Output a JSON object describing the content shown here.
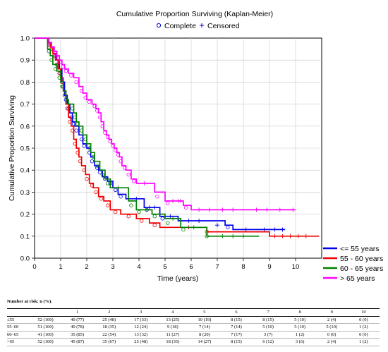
{
  "chart_data": {
    "type": "line",
    "title": "Cumulative Proportion Surviving (Kaplan-Meier)",
    "marker_legend": {
      "complete": "Complete",
      "censored": "Censored"
    },
    "xlabel": "Time (years)",
    "ylabel": "Cumulative Proportion Surviving",
    "xlim": [
      0,
      11
    ],
    "ylim": [
      0,
      1.0
    ],
    "xticks": [
      0,
      1,
      2,
      3,
      4,
      5,
      6,
      7,
      8,
      9,
      10
    ],
    "yticks": [
      0.0,
      0.1,
      0.2,
      0.3,
      0.4,
      0.5,
      0.6,
      0.7,
      0.8,
      0.9,
      1.0
    ],
    "ytick_labels": [
      "0.0",
      "0.1",
      "0.2",
      "0.3",
      "0.4",
      "0.5",
      "0.6",
      "0.7",
      "0.8",
      "0.9",
      "1.0"
    ],
    "grid": true,
    "legend_position": "bottom-right",
    "series": [
      {
        "name": "<= 55 years",
        "color": "#0000ee",
        "steps": [
          [
            0,
            1.0
          ],
          [
            0.55,
            0.98
          ],
          [
            0.65,
            0.96
          ],
          [
            0.75,
            0.94
          ],
          [
            0.85,
            0.9
          ],
          [
            0.95,
            0.86
          ],
          [
            1.05,
            0.8
          ],
          [
            1.15,
            0.74
          ],
          [
            1.25,
            0.7
          ],
          [
            1.35,
            0.66
          ],
          [
            1.45,
            0.62
          ],
          [
            1.55,
            0.6
          ],
          [
            1.7,
            0.56
          ],
          [
            1.85,
            0.52
          ],
          [
            2.0,
            0.5
          ],
          [
            2.15,
            0.46
          ],
          [
            2.3,
            0.42
          ],
          [
            2.45,
            0.4
          ],
          [
            2.6,
            0.37
          ],
          [
            2.8,
            0.35
          ],
          [
            3.0,
            0.32
          ],
          [
            3.2,
            0.29
          ],
          [
            3.5,
            0.27
          ],
          [
            4.2,
            0.23
          ],
          [
            4.8,
            0.19
          ],
          [
            5.5,
            0.17
          ],
          [
            7.3,
            0.15
          ],
          [
            7.6,
            0.13
          ]
        ],
        "end_x": 9.6,
        "complete": [
          [
            0.6,
            0.97
          ],
          [
            0.7,
            0.95
          ],
          [
            0.8,
            0.92
          ],
          [
            0.9,
            0.88
          ],
          [
            1.0,
            0.84
          ],
          [
            1.1,
            0.78
          ],
          [
            1.2,
            0.72
          ],
          [
            1.3,
            0.68
          ],
          [
            1.4,
            0.64
          ],
          [
            1.5,
            0.61
          ],
          [
            1.6,
            0.58
          ],
          [
            1.8,
            0.54
          ],
          [
            1.9,
            0.51
          ],
          [
            2.1,
            0.48
          ],
          [
            2.2,
            0.44
          ],
          [
            2.4,
            0.41
          ],
          [
            2.5,
            0.39
          ],
          [
            2.7,
            0.36
          ],
          [
            2.9,
            0.34
          ],
          [
            3.1,
            0.31
          ],
          [
            3.3,
            0.28
          ],
          [
            4.3,
            0.22
          ],
          [
            4.9,
            0.18
          ],
          [
            7.4,
            0.14
          ]
        ],
        "censored": [
          [
            3.9,
            0.27
          ],
          [
            4.4,
            0.23
          ],
          [
            4.6,
            0.23
          ],
          [
            5.2,
            0.19
          ],
          [
            5.9,
            0.17
          ],
          [
            6.3,
            0.17
          ],
          [
            7.0,
            0.15
          ],
          [
            8.1,
            0.13
          ],
          [
            8.8,
            0.13
          ],
          [
            9.2,
            0.13
          ],
          [
            9.5,
            0.13
          ]
        ]
      },
      {
        "name": "55 - 60 years",
        "color": "#ee0000",
        "steps": [
          [
            0,
            1.0
          ],
          [
            0.5,
            0.98
          ],
          [
            0.6,
            0.96
          ],
          [
            0.7,
            0.93
          ],
          [
            0.8,
            0.9
          ],
          [
            0.9,
            0.86
          ],
          [
            1.0,
            0.82
          ],
          [
            1.1,
            0.76
          ],
          [
            1.2,
            0.7
          ],
          [
            1.3,
            0.64
          ],
          [
            1.4,
            0.6
          ],
          [
            1.5,
            0.54
          ],
          [
            1.6,
            0.5
          ],
          [
            1.7,
            0.46
          ],
          [
            1.8,
            0.42
          ],
          [
            1.95,
            0.38
          ],
          [
            2.1,
            0.34
          ],
          [
            2.25,
            0.32
          ],
          [
            2.45,
            0.28
          ],
          [
            2.65,
            0.26
          ],
          [
            2.9,
            0.22
          ],
          [
            3.3,
            0.2
          ],
          [
            3.9,
            0.18
          ],
          [
            4.4,
            0.16
          ],
          [
            4.8,
            0.14
          ],
          [
            6.6,
            0.12
          ],
          [
            9.0,
            0.1
          ]
        ],
        "end_x": 10.9,
        "complete": [
          [
            0.55,
            0.97
          ],
          [
            0.65,
            0.95
          ],
          [
            0.75,
            0.92
          ],
          [
            0.85,
            0.88
          ],
          [
            0.95,
            0.84
          ],
          [
            1.05,
            0.8
          ],
          [
            1.15,
            0.74
          ],
          [
            1.25,
            0.68
          ],
          [
            1.35,
            0.62
          ],
          [
            1.45,
            0.58
          ],
          [
            1.55,
            0.52
          ],
          [
            1.65,
            0.48
          ],
          [
            1.75,
            0.44
          ],
          [
            1.9,
            0.4
          ],
          [
            2.0,
            0.36
          ],
          [
            2.2,
            0.33
          ],
          [
            2.35,
            0.3
          ],
          [
            2.55,
            0.27
          ],
          [
            2.8,
            0.24
          ],
          [
            3.1,
            0.21
          ],
          [
            3.6,
            0.19
          ],
          [
            4.1,
            0.17
          ],
          [
            4.6,
            0.15
          ],
          [
            6.6,
            0.12
          ]
        ],
        "censored": [
          [
            5.9,
            0.14
          ],
          [
            9.2,
            0.1
          ],
          [
            9.5,
            0.1
          ],
          [
            9.8,
            0.1
          ],
          [
            10.1,
            0.1
          ],
          [
            10.4,
            0.1
          ]
        ]
      },
      {
        "name": "60 - 65 years",
        "color": "#008000",
        "steps": [
          [
            0,
            1.0
          ],
          [
            0.5,
            0.95
          ],
          [
            0.6,
            0.92
          ],
          [
            0.7,
            0.88
          ],
          [
            0.85,
            0.85
          ],
          [
            1.0,
            0.8
          ],
          [
            1.1,
            0.76
          ],
          [
            1.2,
            0.72
          ],
          [
            1.3,
            0.7
          ],
          [
            1.5,
            0.66
          ],
          [
            1.6,
            0.62
          ],
          [
            1.7,
            0.6
          ],
          [
            1.85,
            0.56
          ],
          [
            2.0,
            0.52
          ],
          [
            2.15,
            0.48
          ],
          [
            2.3,
            0.44
          ],
          [
            2.5,
            0.4
          ],
          [
            2.7,
            0.36
          ],
          [
            2.9,
            0.32
          ],
          [
            3.6,
            0.26
          ],
          [
            3.9,
            0.22
          ],
          [
            4.5,
            0.2
          ],
          [
            5.0,
            0.18
          ],
          [
            5.6,
            0.14
          ],
          [
            6.6,
            0.1
          ]
        ],
        "end_x": 8.6,
        "complete": [
          [
            0.55,
            0.94
          ],
          [
            0.65,
            0.9
          ],
          [
            0.8,
            0.86
          ],
          [
            0.95,
            0.82
          ],
          [
            1.05,
            0.78
          ],
          [
            1.15,
            0.74
          ],
          [
            1.25,
            0.71
          ],
          [
            1.45,
            0.68
          ],
          [
            1.55,
            0.64
          ],
          [
            1.65,
            0.61
          ],
          [
            1.8,
            0.58
          ],
          [
            1.95,
            0.54
          ],
          [
            2.1,
            0.5
          ],
          [
            2.25,
            0.46
          ],
          [
            2.4,
            0.42
          ],
          [
            2.6,
            0.38
          ],
          [
            2.8,
            0.34
          ],
          [
            3.7,
            0.24
          ],
          [
            4.0,
            0.21
          ],
          [
            4.6,
            0.19
          ],
          [
            5.1,
            0.16
          ],
          [
            5.7,
            0.13
          ],
          [
            6.6,
            0.1
          ]
        ],
        "censored": [
          [
            3.2,
            0.32
          ],
          [
            4.3,
            0.22
          ],
          [
            5.3,
            0.18
          ],
          [
            6.1,
            0.14
          ],
          [
            7.2,
            0.1
          ],
          [
            7.6,
            0.1
          ],
          [
            8.0,
            0.1
          ]
        ]
      },
      {
        "name": "> 65 years",
        "color": "#ff00ff",
        "steps": [
          [
            0,
            1.0
          ],
          [
            0.55,
            0.98
          ],
          [
            0.65,
            0.96
          ],
          [
            0.75,
            0.94
          ],
          [
            0.85,
            0.92
          ],
          [
            0.95,
            0.9
          ],
          [
            1.05,
            0.88
          ],
          [
            1.15,
            0.86
          ],
          [
            1.3,
            0.84
          ],
          [
            1.5,
            0.82
          ],
          [
            1.7,
            0.78
          ],
          [
            1.85,
            0.75
          ],
          [
            2.0,
            0.72
          ],
          [
            2.2,
            0.7
          ],
          [
            2.35,
            0.68
          ],
          [
            2.45,
            0.66
          ],
          [
            2.55,
            0.62
          ],
          [
            2.65,
            0.58
          ],
          [
            2.75,
            0.56
          ],
          [
            2.85,
            0.54
          ],
          [
            2.95,
            0.52
          ],
          [
            3.05,
            0.5
          ],
          [
            3.15,
            0.48
          ],
          [
            3.25,
            0.46
          ],
          [
            3.35,
            0.42
          ],
          [
            3.5,
            0.4
          ],
          [
            3.7,
            0.36
          ],
          [
            3.9,
            0.34
          ],
          [
            4.6,
            0.3
          ],
          [
            5.0,
            0.26
          ],
          [
            5.7,
            0.24
          ],
          [
            6.0,
            0.22
          ]
        ],
        "end_x": 10.0,
        "complete": [
          [
            0.6,
            0.97
          ],
          [
            0.7,
            0.95
          ],
          [
            0.8,
            0.93
          ],
          [
            0.9,
            0.91
          ],
          [
            1.0,
            0.89
          ],
          [
            1.1,
            0.87
          ],
          [
            1.2,
            0.85
          ],
          [
            1.4,
            0.83
          ],
          [
            1.6,
            0.8
          ],
          [
            1.8,
            0.76
          ],
          [
            1.95,
            0.73
          ],
          [
            2.1,
            0.71
          ],
          [
            2.3,
            0.69
          ],
          [
            2.4,
            0.67
          ],
          [
            2.5,
            0.64
          ],
          [
            2.6,
            0.6
          ],
          [
            2.7,
            0.57
          ],
          [
            2.8,
            0.55
          ],
          [
            2.9,
            0.53
          ],
          [
            3.0,
            0.51
          ],
          [
            3.1,
            0.49
          ],
          [
            3.2,
            0.47
          ],
          [
            3.3,
            0.44
          ],
          [
            3.45,
            0.41
          ],
          [
            3.6,
            0.38
          ],
          [
            3.8,
            0.35
          ],
          [
            4.7,
            0.28
          ],
          [
            5.1,
            0.25
          ],
          [
            5.8,
            0.23
          ]
        ],
        "censored": [
          [
            4.2,
            0.34
          ],
          [
            5.3,
            0.26
          ],
          [
            5.5,
            0.26
          ],
          [
            5.6,
            0.26
          ],
          [
            6.3,
            0.22
          ],
          [
            6.7,
            0.22
          ],
          [
            7.2,
            0.22
          ],
          [
            7.6,
            0.22
          ],
          [
            8.5,
            0.22
          ],
          [
            8.9,
            0.22
          ],
          [
            9.4,
            0.22
          ],
          [
            9.9,
            0.22
          ]
        ]
      }
    ]
  },
  "risk_table": {
    "caption": "Number at risk: n (%).",
    "columns": [
      "",
      "",
      "1",
      "2",
      "3",
      "4",
      "5",
      "6",
      "7",
      "8",
      "9",
      "10"
    ],
    "rows": [
      [
        "≤55",
        "52 (100)",
        "40 (77)",
        "25 (48)",
        "17 (33)",
        "13 (25)",
        "10 (19)",
        "8 (15)",
        "8 (15)",
        "5 (10)",
        "2 (4)",
        "0 (0)"
      ],
      [
        "55–60",
        "51 (100)",
        "40 (78)",
        "18 (35)",
        "12 (24)",
        "9 (18)",
        "7 (14)",
        "7 (14)",
        "5 (10)",
        "5 (10)",
        "5 (10)",
        "1 (2)"
      ],
      [
        "60–65",
        "41 (100)",
        "35 (85)",
        "22 (54)",
        "13 (32)",
        "11 (27)",
        "8 (20)",
        "7 (17)",
        "3 (7)",
        "1 (2)",
        "0 (0)",
        "0 (0)"
      ],
      [
        ">65",
        "52 (100)",
        "45 (87)",
        "35 (67)",
        "25 (48)",
        "18 (35)",
        "14 (27)",
        "8 (15)",
        "6 (12)",
        "3 (6)",
        "2 (4)",
        "1 (2)"
      ]
    ]
  }
}
